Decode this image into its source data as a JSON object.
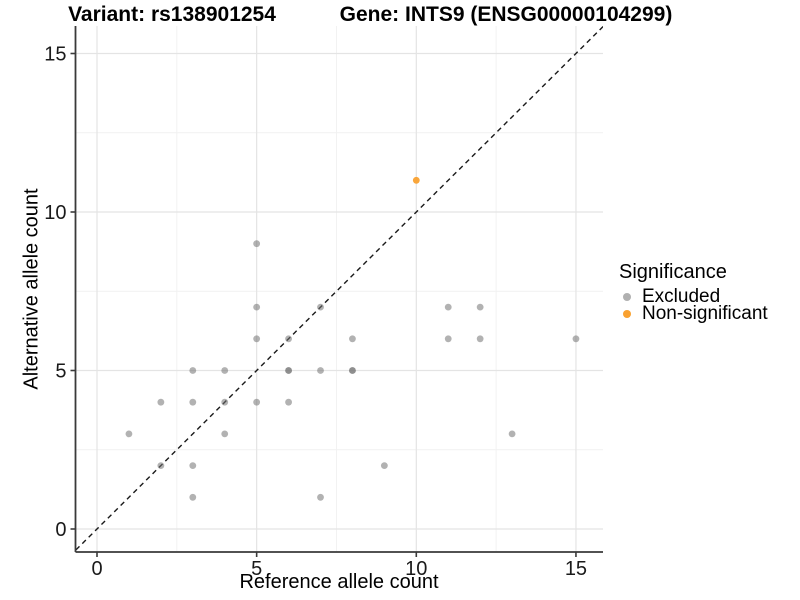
{
  "titles": {
    "variant": "Variant: rs138901254",
    "gene": "Gene: INTS9 (ENSG00000104299)"
  },
  "legend": {
    "title": "Significance",
    "items": [
      {
        "label": "Excluded",
        "color": "#b0b0b0"
      },
      {
        "label": "Non-significant",
        "color": "#f9a130"
      }
    ]
  },
  "colors": {
    "excluded_point": "#737373",
    "excluded_opacity": 0.55,
    "nonsignificant_point": "#f9a130",
    "major_grid": "#e4e4e4",
    "minor_grid": "#f1f1f1",
    "axis_line": "#3a3a3a",
    "tick_label": "#1a1a1a",
    "identity_line": "#1a1a1a"
  },
  "chart_data": {
    "type": "scatter",
    "title": "Variant: rs138901254 | Gene: INTS9 (ENSG00000104299)",
    "xlabel": "Reference allele count",
    "ylabel": "Alternative allele count",
    "xlim": [
      -0.66,
      15.85
    ],
    "ylim": [
      -0.66,
      15.85
    ],
    "x_ticks": [
      0,
      5,
      10,
      15
    ],
    "y_ticks": [
      0,
      5,
      10,
      15
    ],
    "x_minor_ticks": [
      2.5,
      7.5,
      12.5
    ],
    "y_minor_ticks": [
      2.5,
      7.5,
      12.5
    ],
    "grid": true,
    "legend_position": "right",
    "identity_line": {
      "slope": 1,
      "intercept": 0,
      "style": "dashed"
    },
    "series": [
      {
        "name": "Excluded",
        "points": [
          [
            1,
            3
          ],
          [
            2,
            2
          ],
          [
            2,
            4
          ],
          [
            3,
            1
          ],
          [
            3,
            2
          ],
          [
            3,
            4
          ],
          [
            3,
            5
          ],
          [
            4,
            3
          ],
          [
            4,
            4
          ],
          [
            4,
            5
          ],
          [
            5,
            4
          ],
          [
            5,
            6
          ],
          [
            5,
            7
          ],
          [
            5,
            9
          ],
          [
            6,
            4
          ],
          [
            6,
            5
          ],
          [
            6,
            5
          ],
          [
            6,
            6
          ],
          [
            7,
            1
          ],
          [
            7,
            5
          ],
          [
            7,
            7
          ],
          [
            8,
            5
          ],
          [
            8,
            5
          ],
          [
            8,
            6
          ],
          [
            9,
            2
          ],
          [
            11,
            6
          ],
          [
            11,
            7
          ],
          [
            12,
            6
          ],
          [
            12,
            7
          ],
          [
            13,
            3
          ],
          [
            15,
            6
          ]
        ]
      },
      {
        "name": "Non-significant",
        "points": [
          [
            10,
            11
          ]
        ]
      }
    ]
  }
}
